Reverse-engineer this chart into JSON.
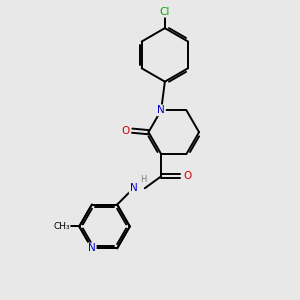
{
  "background_color": "#e8e8e8",
  "atom_color_C": "#000000",
  "atom_color_N": "#0000cc",
  "atom_color_O": "#cc0000",
  "atom_color_Cl": "#00aa00",
  "atom_color_H": "#808080",
  "bond_color": "#000000",
  "figsize": [
    3.0,
    3.0
  ],
  "dpi": 100,
  "xlim": [
    0,
    10
  ],
  "ylim": [
    0,
    10
  ]
}
